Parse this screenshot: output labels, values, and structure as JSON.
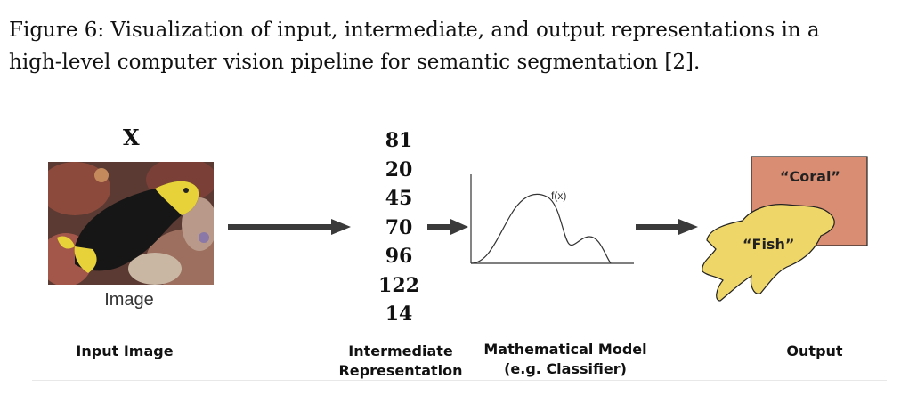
{
  "caption": {
    "line1": "Figure 6:  Visualization of input, intermediate, and output representations in a",
    "line2": "high-level computer vision pipeline for semantic segmentation [2]."
  },
  "figure": {
    "input_symbol": "X",
    "image_label": "Image",
    "intermediate_values": [
      "81",
      "20",
      "45",
      "70",
      "96",
      "122",
      "14"
    ],
    "function_label": "f(x)",
    "output_labels": {
      "coral": "“Coral”",
      "fish": "“Fish”"
    },
    "stages": {
      "input": "Input Image",
      "intermediate_line1": "Intermediate",
      "intermediate_line2": "Representation",
      "model_line1": "Mathematical Model",
      "model_line2": "(e.g. Classifier)",
      "output": "Output"
    },
    "colors": {
      "arrow": "#3a3a3a",
      "coral_fill": "#d98e74",
      "fish_fill": "#efd669",
      "outline": "#222222"
    },
    "icons": [
      "arrow-right-icon",
      "fish-photo"
    ]
  }
}
